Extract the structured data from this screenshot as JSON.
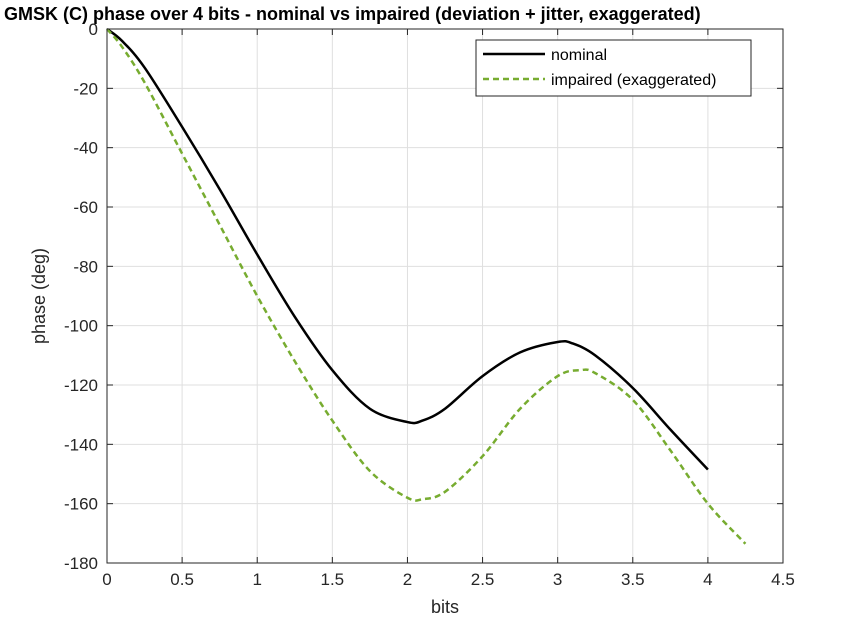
{
  "chart_data": {
    "type": "line",
    "title": "GMSK (C) phase over 4 bits - nominal vs impaired (deviation + jitter, exaggerated)",
    "xlabel": "bits",
    "ylabel": "phase (deg)",
    "xlim": [
      0,
      4.5
    ],
    "ylim": [
      -180,
      0
    ],
    "xticks": [
      0,
      0.5,
      1,
      1.5,
      2,
      2.5,
      3,
      3.5,
      4,
      4.5
    ],
    "xtick_labels": [
      "0",
      "0.5",
      "1",
      "1.5",
      "2",
      "2.5",
      "3",
      "3.5",
      "4",
      "4.5"
    ],
    "yticks": [
      0,
      -20,
      -40,
      -60,
      -80,
      -100,
      -120,
      -140,
      -160,
      -180
    ],
    "ytick_labels": [
      "0",
      "-20",
      "-40",
      "-60",
      "-80",
      "-100",
      "-120",
      "-140",
      "-160",
      "-180"
    ],
    "grid": true,
    "legend_position": "top-right",
    "series": [
      {
        "name": "nominal",
        "color": "#000000",
        "dash": "solid",
        "x": [
          0,
          0.1,
          0.25,
          0.5,
          0.75,
          1.0,
          1.25,
          1.5,
          1.75,
          2.0,
          2.1,
          2.25,
          2.5,
          2.75,
          3.0,
          3.1,
          3.25,
          3.5,
          3.75,
          4.0
        ],
        "y": [
          0,
          -4,
          -13,
          -33,
          -54,
          -76,
          -97,
          -115,
          -128,
          -132.5,
          -132,
          -128,
          -117,
          -109,
          -105.5,
          -106,
          -110,
          -121,
          -135,
          -148.5
        ]
      },
      {
        "name": "impaired (exaggerated)",
        "color": "#77AC30",
        "dash": "dashed",
        "x": [
          0,
          0.1,
          0.25,
          0.5,
          0.75,
          1.0,
          1.25,
          1.5,
          1.75,
          2.0,
          2.1,
          2.25,
          2.5,
          2.75,
          3.0,
          3.15,
          3.25,
          3.5,
          3.75,
          4.0,
          4.25
        ],
        "y": [
          0,
          -6,
          -18,
          -42,
          -66,
          -90,
          -112,
          -132,
          -149,
          -158,
          -158.5,
          -156,
          -144,
          -128,
          -117,
          -115,
          -116,
          -125,
          -142,
          -160,
          -173.5
        ]
      }
    ]
  }
}
